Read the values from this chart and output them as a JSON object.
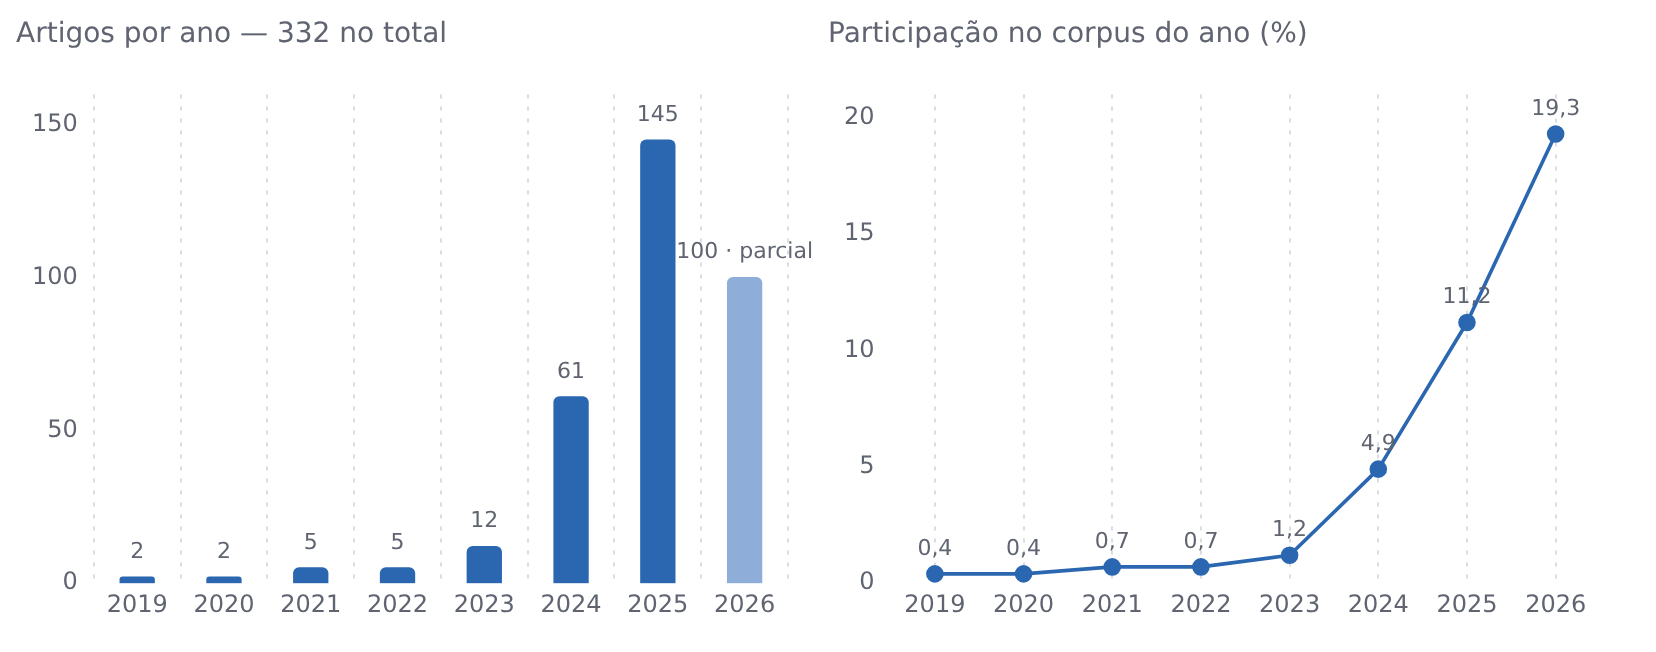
{
  "chart_data": [
    {
      "type": "bar",
      "title": "Artigos por ano — 332 no total",
      "categories": [
        "2019",
        "2020",
        "2021",
        "2022",
        "2023",
        "2024",
        "2025",
        "2026"
      ],
      "values": [
        2,
        2,
        5,
        5,
        12,
        61,
        145,
        100
      ],
      "colors": [
        "#2b67b0",
        "#2b67b0",
        "#2b67b0",
        "#2b67b0",
        "#2b67b0",
        "#2b67b0",
        "#2b67b0",
        "#8eadd8"
      ],
      "value_labels": [
        "2",
        "2",
        "5",
        "5",
        "12",
        "61",
        "145",
        "100 · parcial"
      ],
      "ylim": [
        0,
        160
      ],
      "yticks": [
        0,
        50,
        100,
        150
      ],
      "grid": "x",
      "legend": false
    },
    {
      "type": "line",
      "title": "Participação no corpus do ano (%)",
      "categories": [
        "2019",
        "2020",
        "2021",
        "2022",
        "2023",
        "2024",
        "2025",
        "2026"
      ],
      "series": [
        {
          "color": "#2b67b0",
          "values": [
            0.4,
            0.4,
            0.7,
            0.7,
            1.2,
            4.9,
            11.2,
            19.3
          ],
          "value_labels": [
            "0,4",
            "0,4",
            "0,7",
            "0,7",
            "1,2",
            "4,9",
            "11,2",
            "19,3"
          ]
        }
      ],
      "ylim": [
        0,
        21
      ],
      "yticks": [
        0,
        5,
        10,
        15,
        20
      ],
      "grid": "x",
      "legend": false,
      "marker": "circle",
      "line_style": "solid"
    }
  ]
}
